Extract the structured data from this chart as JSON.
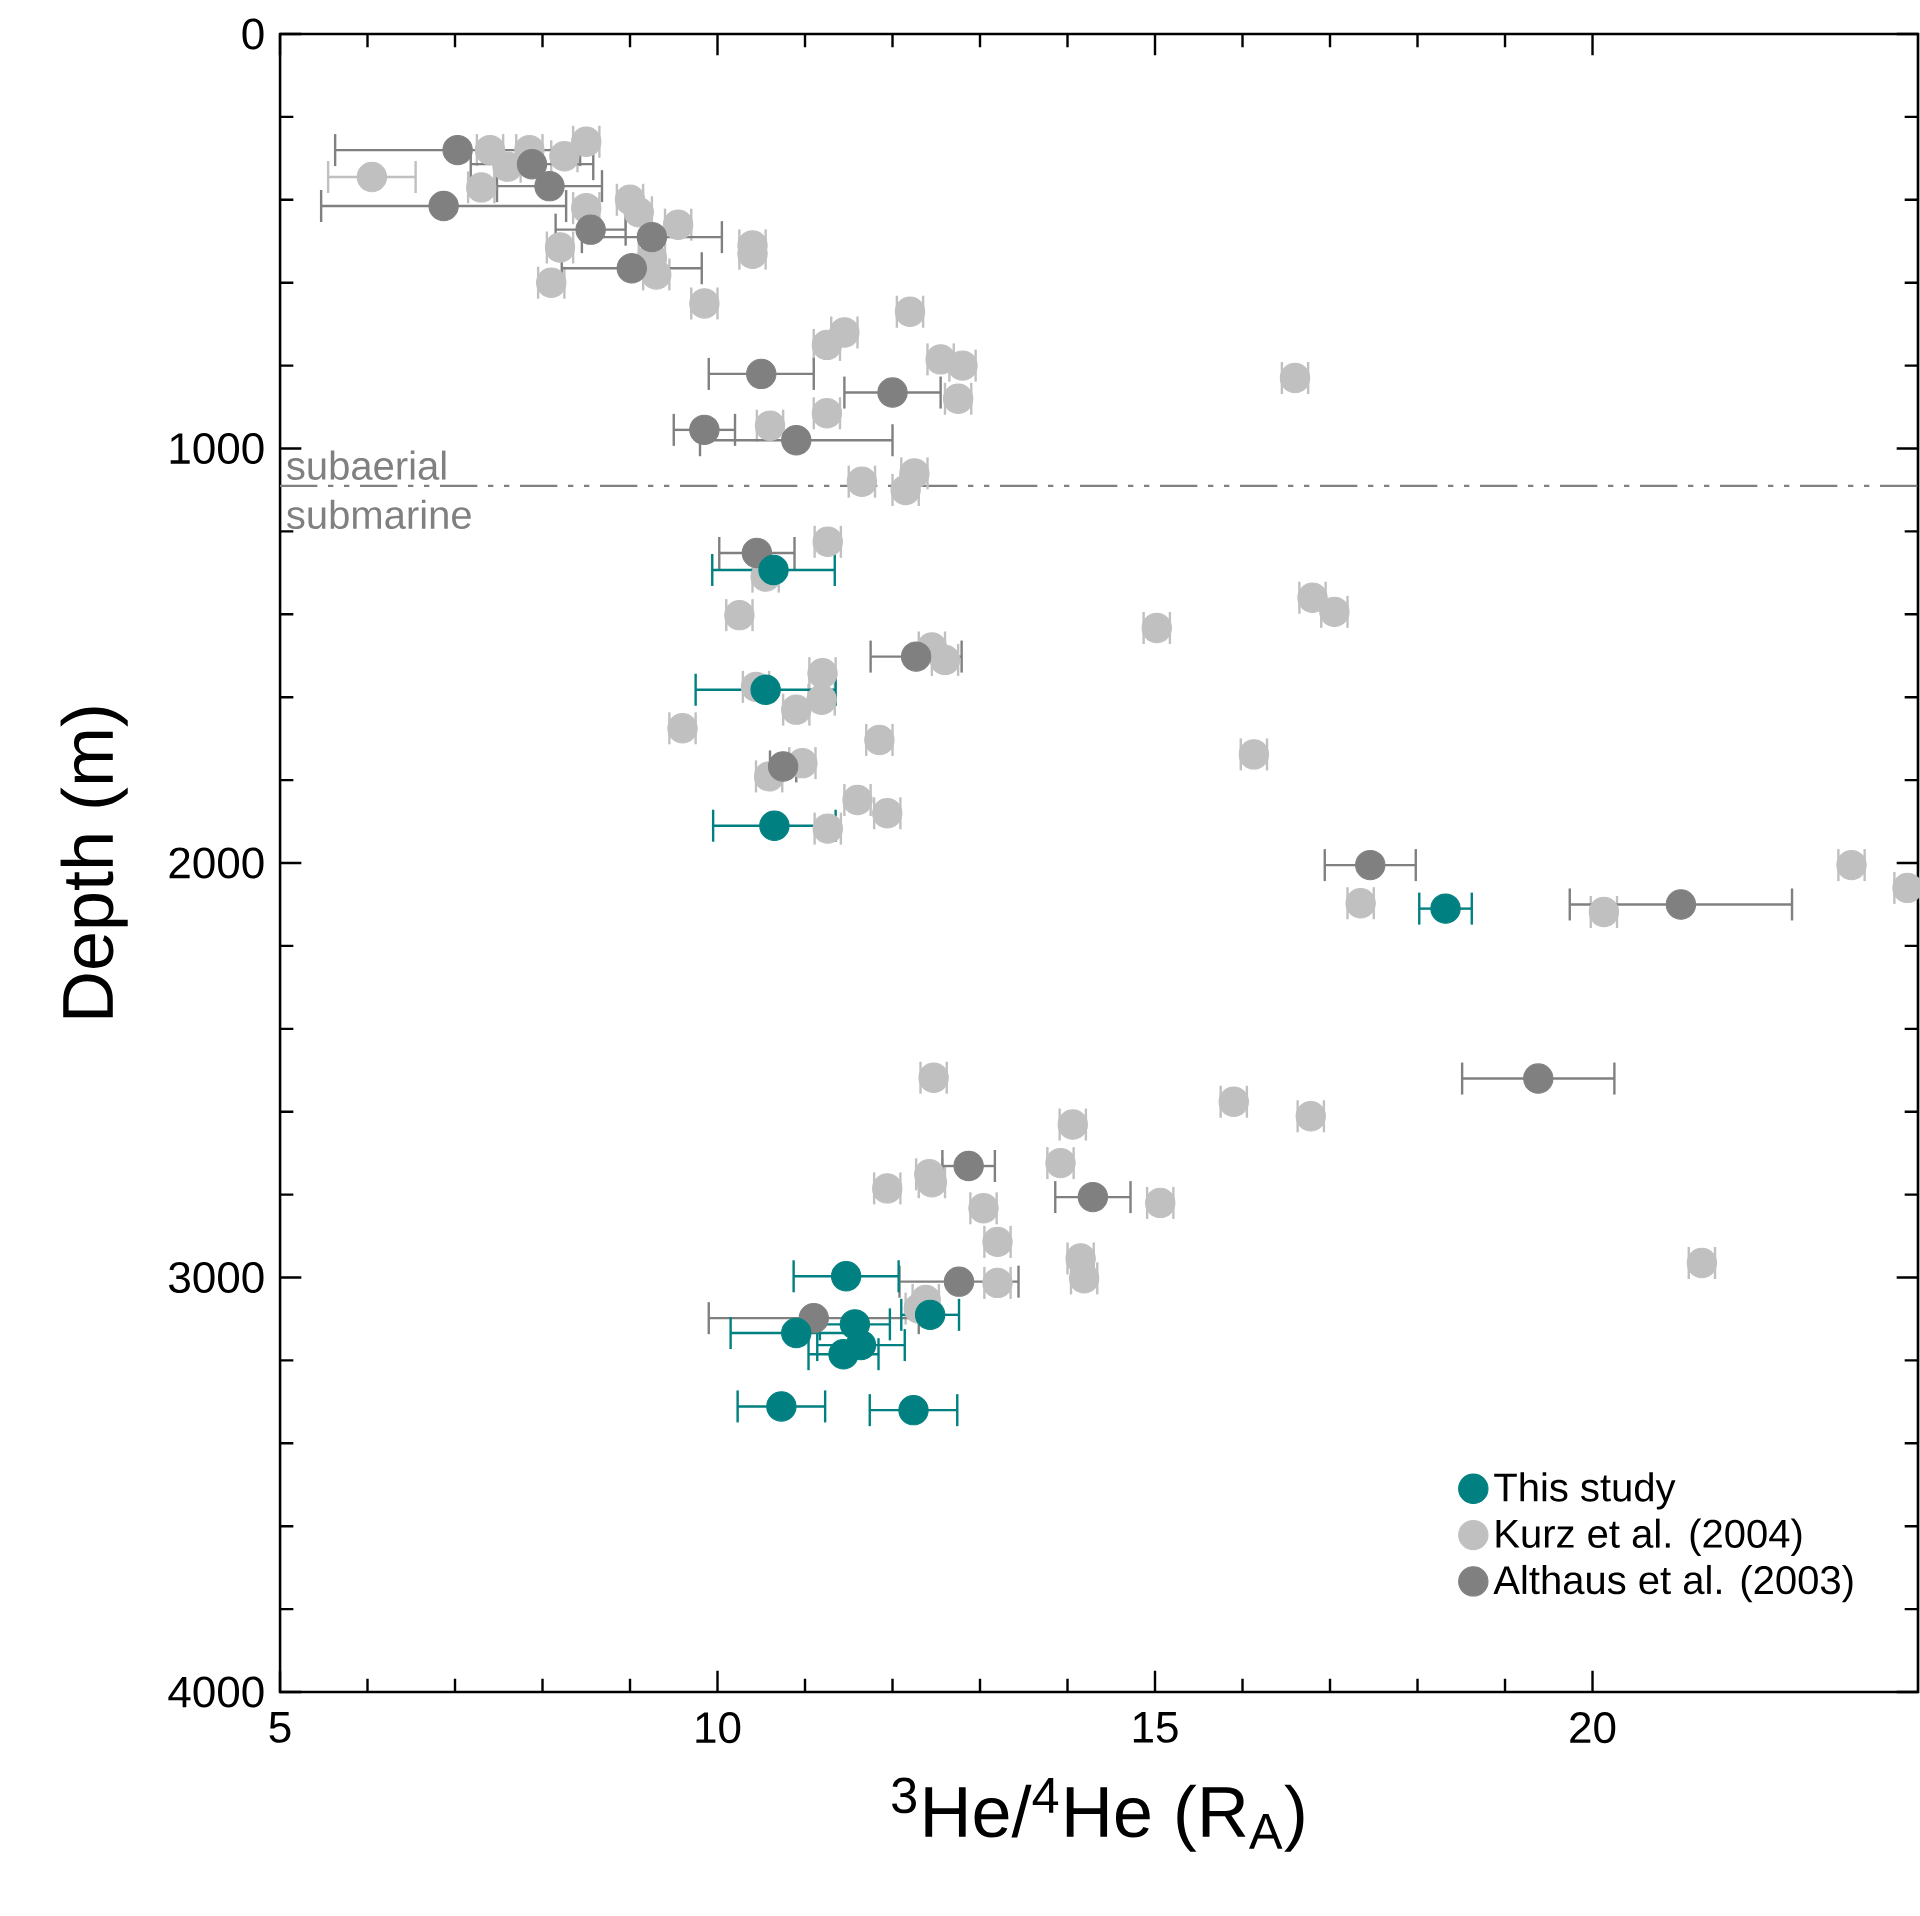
{
  "chart_data": {
    "type": "scatter",
    "xlabel": "$^{3}$He/$^{4}$He (R$_{A}$)",
    "ylabel": "Depth (m)",
    "xlim": [
      5,
      23.72
    ],
    "ylim": [
      4000,
      0
    ],
    "xticks": [
      5,
      10,
      15,
      20
    ],
    "yticks": [
      0,
      1000,
      2000,
      3000,
      4000
    ],
    "grid": false,
    "legend": "bottom right",
    "marker": "circle",
    "ref_lines": [
      {
        "axis": "y",
        "value": 1090,
        "label": "subaerial",
        "color": "#808080",
        "line_style": "dashed"
      }
    ],
    "annotations": [
      "submarine"
    ],
    "series": [
      {
        "name": "This study",
        "color": "#008080",
        "x": [
          10.64,
          10.55,
          10.65,
          18.32,
          11.47,
          12.43,
          11.57,
          10.9,
          11.64,
          11.44,
          10.73,
          12.24
        ],
        "values": [
          1293,
          1582,
          1910,
          2110,
          2997,
          3090,
          3113,
          3134,
          3163,
          3185,
          3311,
          3320
        ],
        "xerrors": [
          0.7,
          0.8,
          0.7,
          0.3,
          0.6,
          0.33,
          0.4,
          0.75,
          0.5,
          0.4,
          0.5,
          0.5
        ]
      },
      {
        "name": "Kurz et al. (2004)",
        "color": "#c0c0c0",
        "x": [
          8.5,
          7.4,
          7.85,
          8.25,
          6.05,
          7.6,
          7.3,
          8.5,
          9.0,
          9.1,
          9.55,
          8.2,
          9.25,
          10.4,
          10.4,
          9.3,
          8.1,
          9.85,
          12.2,
          11.45,
          11.25,
          12.55,
          12.8,
          16.6,
          12.75,
          11.25,
          10.6,
          11.65,
          12.25,
          12.15,
          11.26,
          10.55,
          10.25,
          12.45,
          12.6,
          10.44,
          11.2,
          11.19,
          10.9,
          9.6,
          11.85,
          10.97,
          10.59,
          11.6,
          11.94,
          11.26,
          15.02,
          17.05,
          16.8,
          16.13,
          17.35,
          22.96,
          23.6,
          20.13,
          15.9,
          16.78,
          15.06,
          21.25,
          12.47,
          14.06,
          13.92,
          12.42,
          12.45,
          11.94,
          13.04,
          13.2,
          14.15,
          14.19,
          13.2,
          12.38,
          12.3
        ],
        "values": [
          260,
          280,
          280,
          295,
          345,
          320,
          370,
          420,
          400,
          430,
          460,
          515,
          540,
          530,
          510,
          580,
          600,
          650,
          670,
          720,
          750,
          785,
          800,
          830,
          880,
          915,
          945,
          1080,
          1060,
          1100,
          1225,
          1309,
          1402,
          1480,
          1510,
          1575,
          1542,
          1606,
          1630,
          1675,
          1703,
          1759,
          1791,
          1848,
          1880,
          1917,
          1433,
          1394,
          1360,
          1738,
          2097,
          2005,
          2060,
          2118,
          2576,
          2611,
          2820,
          2965,
          2518,
          2631,
          2724,
          2751,
          2770,
          2785,
          2833,
          2914,
          2954,
          3002,
          3013,
          3054,
          3075
        ],
        "xerrors": [
          0.15,
          0.15,
          0.15,
          0.15,
          0.5,
          0.15,
          0.15,
          0.15,
          0.15,
          0.15,
          0.15,
          0.15,
          0.15,
          0.15,
          0.15,
          0.15,
          0.15,
          0.15,
          0.15,
          0.15,
          0.15,
          0.15,
          0.15,
          0.15,
          0.15,
          0.15,
          0.15,
          0.15,
          0.15,
          0.15,
          0.15,
          0.15,
          0.15,
          0.15,
          0.15,
          0.15,
          0.15,
          0.15,
          0.15,
          0.15,
          0.15,
          0.15,
          0.15,
          0.15,
          0.15,
          0.15,
          0.15,
          0.15,
          0.15,
          0.15,
          0.15,
          0.15,
          0.15,
          0.15,
          0.15,
          0.15,
          0.15,
          0.15,
          0.15,
          0.15,
          0.15,
          0.15,
          0.15,
          0.15,
          0.15,
          0.15,
          0.15,
          0.15,
          0.15,
          0.15,
          0.15
        ]
      },
      {
        "name": "Althaus et al. (2003)",
        "color": "#808080",
        "x": [
          7.03,
          7.88,
          8.08,
          6.87,
          8.55,
          9.25,
          9.02,
          10.5,
          12.0,
          9.85,
          10.9,
          10.45,
          12.27,
          10.75,
          12.87,
          14.29,
          12.76,
          11.1,
          17.46,
          21.01,
          19.38
        ],
        "values": [
          280,
          314,
          367,
          415,
          472,
          490,
          565,
          820,
          865,
          955,
          980,
          1252,
          1502,
          1767,
          2731,
          2806,
          3010,
          3098,
          2005,
          2100,
          2520
        ],
        "xerrors": [
          1.4,
          0.7,
          0.6,
          1.4,
          0.4,
          0.8,
          0.8,
          0.6,
          0.55,
          0.35,
          1.1,
          0.43,
          0.52,
          0.15,
          0.3,
          0.43,
          0.68,
          1.2,
          0.52,
          1.27,
          0.87
        ]
      }
    ]
  }
}
